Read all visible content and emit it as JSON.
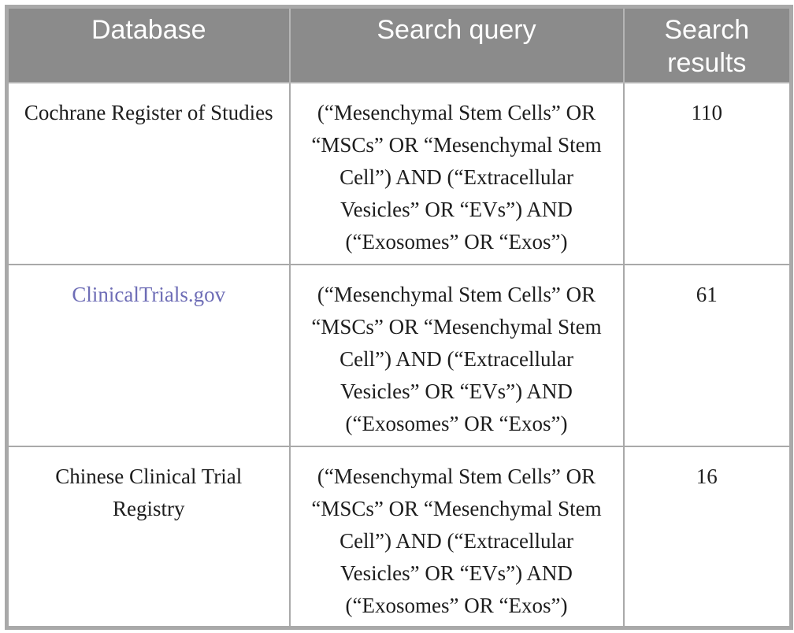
{
  "table": {
    "header": {
      "bg_color": "#8b8b8b",
      "text_color": "#ffffff",
      "columns": [
        "Database",
        "Search query",
        "Search results"
      ]
    },
    "border_color": "#a9a9a9",
    "link_color": "#6e6db6",
    "rows": [
      {
        "database": "Cochrane Register of Studies",
        "query": "(“Mesenchymal Stem Cells” OR\n“MSCs” OR “Mesenchymal Stem\nCell”) AND (“Extracellular\nVesicles” OR “EVs”) AND\n(“Exosomes” OR “Exos”)",
        "results": "110"
      },
      {
        "database": "ClinicalTrials.gov",
        "query": "(“Mesenchymal Stem Cells” OR\n“MSCs” OR “Mesenchymal Stem\nCell”) AND (“Extracellular\nVesicles” OR “EVs”) AND\n(“Exosomes” OR “Exos”)",
        "results": "61"
      },
      {
        "database": "Chinese Clinical Trial Registry",
        "query": "(“Mesenchymal Stem Cells” OR\n“MSCs” OR “Mesenchymal Stem\nCell”) AND (“Extracellular\nVesicles” OR “EVs”) AND\n(“Exosomes” OR “Exos”)",
        "results": "16"
      }
    ]
  }
}
